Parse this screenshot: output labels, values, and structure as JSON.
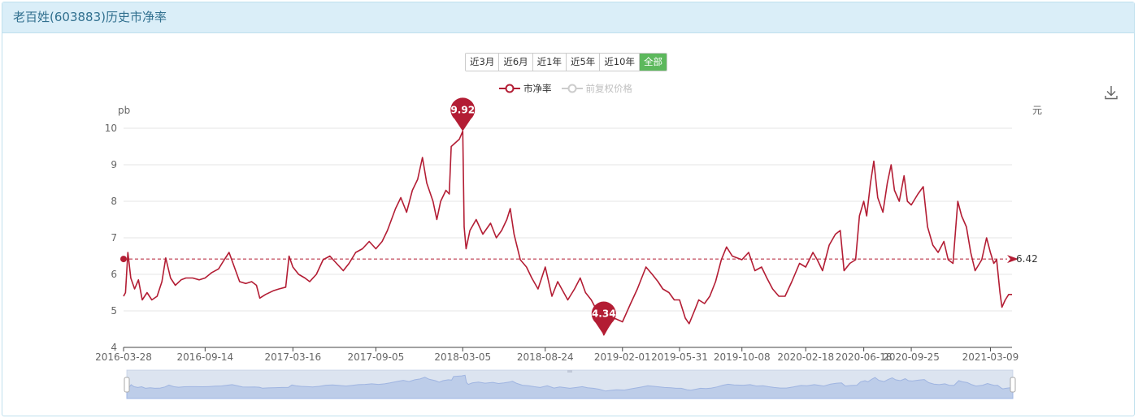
{
  "panel": {
    "title": "老百姓(603883)历史市净率"
  },
  "range_buttons": [
    {
      "label": "近3月",
      "active": false
    },
    {
      "label": "近6月",
      "active": false
    },
    {
      "label": "近1年",
      "active": false
    },
    {
      "label": "近5年",
      "active": false
    },
    {
      "label": "近10年",
      "active": false
    },
    {
      "label": "全部",
      "active": true
    }
  ],
  "legend": [
    {
      "label": "市净率",
      "color": "#b31d34",
      "enabled": true
    },
    {
      "label": "前复权价格",
      "color": "#cccccc",
      "enabled": false
    }
  ],
  "toolbar": {
    "download_icon": "download-icon"
  },
  "chart_data": {
    "type": "line",
    "y_axis_unit": "pb",
    "y2_axis_unit": "元",
    "ylim": [
      4,
      10
    ],
    "yticks": [
      4,
      5,
      6,
      7,
      8,
      9,
      10
    ],
    "x_range": [
      "2016-03-28",
      "2021-04-23"
    ],
    "xticks": [
      "2016-03-28",
      "2016-09-14",
      "2017-03-16",
      "2017-09-05",
      "2018-03-05",
      "2018-08-24",
      "2019-02-01",
      "2019-05-31",
      "2019-10-08",
      "2020-02-18",
      "2020-06-18",
      "2020-09-25",
      "2021-03-09"
    ],
    "grid": true,
    "series": [
      {
        "name": "市净率",
        "color": "#b31d34",
        "points": [
          [
            "2016-03-28",
            5.4
          ],
          [
            "2016-04-01",
            5.5
          ],
          [
            "2016-04-06",
            6.6
          ],
          [
            "2016-04-12",
            5.9
          ],
          [
            "2016-04-20",
            5.6
          ],
          [
            "2016-04-28",
            5.85
          ],
          [
            "2016-05-06",
            5.3
          ],
          [
            "2016-05-16",
            5.5
          ],
          [
            "2016-05-26",
            5.3
          ],
          [
            "2016-06-06",
            5.4
          ],
          [
            "2016-06-16",
            5.8
          ],
          [
            "2016-06-24",
            6.45
          ],
          [
            "2016-07-04",
            5.9
          ],
          [
            "2016-07-14",
            5.7
          ],
          [
            "2016-07-26",
            5.85
          ],
          [
            "2016-08-05",
            5.9
          ],
          [
            "2016-08-19",
            5.9
          ],
          [
            "2016-09-02",
            5.85
          ],
          [
            "2016-09-14",
            5.9
          ],
          [
            "2016-09-28",
            6.05
          ],
          [
            "2016-10-12",
            6.15
          ],
          [
            "2016-10-24",
            6.4
          ],
          [
            "2016-11-03",
            6.6
          ],
          [
            "2016-11-14",
            6.2
          ],
          [
            "2016-11-25",
            5.8
          ],
          [
            "2016-12-08",
            5.75
          ],
          [
            "2016-12-20",
            5.8
          ],
          [
            "2016-12-30",
            5.7
          ],
          [
            "2017-01-06",
            5.35
          ],
          [
            "2017-01-18",
            5.45
          ],
          [
            "2017-02-03",
            5.55
          ],
          [
            "2017-02-15",
            5.6
          ],
          [
            "2017-03-01",
            5.65
          ],
          [
            "2017-03-08",
            6.5
          ],
          [
            "2017-03-16",
            6.2
          ],
          [
            "2017-03-28",
            6.0
          ],
          [
            "2017-04-10",
            5.9
          ],
          [
            "2017-04-20",
            5.8
          ],
          [
            "2017-05-04",
            6.0
          ],
          [
            "2017-05-18",
            6.4
          ],
          [
            "2017-06-01",
            6.5
          ],
          [
            "2017-06-15",
            6.3
          ],
          [
            "2017-06-29",
            6.1
          ],
          [
            "2017-07-11",
            6.3
          ],
          [
            "2017-07-25",
            6.6
          ],
          [
            "2017-08-08",
            6.7
          ],
          [
            "2017-08-22",
            6.9
          ],
          [
            "2017-09-05",
            6.7
          ],
          [
            "2017-09-18",
            6.9
          ],
          [
            "2017-09-29",
            7.2
          ],
          [
            "2017-10-16",
            7.8
          ],
          [
            "2017-10-27",
            8.1
          ],
          [
            "2017-11-08",
            7.7
          ],
          [
            "2017-11-20",
            8.3
          ],
          [
            "2017-12-01",
            8.6
          ],
          [
            "2017-12-11",
            9.2
          ],
          [
            "2017-12-20",
            8.5
          ],
          [
            "2018-01-02",
            8.0
          ],
          [
            "2018-01-10",
            7.5
          ],
          [
            "2018-01-18",
            8.0
          ],
          [
            "2018-01-29",
            8.3
          ],
          [
            "2018-02-05",
            8.2
          ],
          [
            "2018-02-09",
            9.5
          ],
          [
            "2018-02-26",
            9.7
          ],
          [
            "2018-03-05",
            9.92
          ],
          [
            "2018-03-08",
            7.3
          ],
          [
            "2018-03-12",
            6.7
          ],
          [
            "2018-03-20",
            7.2
          ],
          [
            "2018-04-02",
            7.5
          ],
          [
            "2018-04-16",
            7.1
          ],
          [
            "2018-05-02",
            7.4
          ],
          [
            "2018-05-14",
            7.0
          ],
          [
            "2018-05-25",
            7.2
          ],
          [
            "2018-06-05",
            7.5
          ],
          [
            "2018-06-12",
            7.8
          ],
          [
            "2018-06-20",
            7.1
          ],
          [
            "2018-07-03",
            6.4
          ],
          [
            "2018-07-16",
            6.2
          ],
          [
            "2018-07-27",
            5.9
          ],
          [
            "2018-08-09",
            5.6
          ],
          [
            "2018-08-24",
            6.2
          ],
          [
            "2018-09-07",
            5.4
          ],
          [
            "2018-09-19",
            5.8
          ],
          [
            "2018-10-10",
            5.3
          ],
          [
            "2018-10-24",
            5.6
          ],
          [
            "2018-11-05",
            5.9
          ],
          [
            "2018-11-16",
            5.5
          ],
          [
            "2018-11-28",
            5.3
          ],
          [
            "2018-12-10",
            5.0
          ],
          [
            "2018-12-24",
            4.34
          ],
          [
            "2019-01-04",
            4.6
          ],
          [
            "2019-01-15",
            4.8
          ],
          [
            "2019-02-01",
            4.7
          ],
          [
            "2019-02-18",
            5.2
          ],
          [
            "2019-03-04",
            5.6
          ],
          [
            "2019-03-13",
            5.9
          ],
          [
            "2019-03-22",
            6.2
          ],
          [
            "2019-04-04",
            6.0
          ],
          [
            "2019-04-16",
            5.8
          ],
          [
            "2019-04-26",
            5.6
          ],
          [
            "2019-05-09",
            5.5
          ],
          [
            "2019-05-20",
            5.3
          ],
          [
            "2019-05-31",
            5.3
          ],
          [
            "2019-06-12",
            4.8
          ],
          [
            "2019-06-20",
            4.65
          ],
          [
            "2019-07-01",
            5.0
          ],
          [
            "2019-07-10",
            5.3
          ],
          [
            "2019-07-22",
            5.2
          ],
          [
            "2019-08-02",
            5.4
          ],
          [
            "2019-08-14",
            5.8
          ],
          [
            "2019-08-26",
            6.4
          ],
          [
            "2019-09-06",
            6.75
          ],
          [
            "2019-09-18",
            6.5
          ],
          [
            "2019-10-08",
            6.4
          ],
          [
            "2019-10-22",
            6.6
          ],
          [
            "2019-11-04",
            6.1
          ],
          [
            "2019-11-18",
            6.2
          ],
          [
            "2019-11-29",
            5.9
          ],
          [
            "2019-12-11",
            5.6
          ],
          [
            "2019-12-24",
            5.4
          ],
          [
            "2020-01-06",
            5.4
          ],
          [
            "2020-01-20",
            5.8
          ],
          [
            "2020-02-05",
            6.3
          ],
          [
            "2020-02-18",
            6.2
          ],
          [
            "2020-03-04",
            6.6
          ],
          [
            "2020-03-13",
            6.4
          ],
          [
            "2020-03-24",
            6.1
          ],
          [
            "2020-04-07",
            6.8
          ],
          [
            "2020-04-20",
            7.1
          ],
          [
            "2020-04-30",
            7.2
          ],
          [
            "2020-05-08",
            6.1
          ],
          [
            "2020-05-20",
            6.3
          ],
          [
            "2020-06-01",
            6.4
          ],
          [
            "2020-06-09",
            7.6
          ],
          [
            "2020-06-18",
            8.0
          ],
          [
            "2020-06-24",
            7.6
          ],
          [
            "2020-07-02",
            8.5
          ],
          [
            "2020-07-09",
            9.1
          ],
          [
            "2020-07-17",
            8.1
          ],
          [
            "2020-07-28",
            7.7
          ],
          [
            "2020-08-06",
            8.5
          ],
          [
            "2020-08-14",
            9.0
          ],
          [
            "2020-08-21",
            8.3
          ],
          [
            "2020-08-31",
            8.0
          ],
          [
            "2020-09-10",
            8.7
          ],
          [
            "2020-09-17",
            8.0
          ],
          [
            "2020-09-25",
            7.9
          ],
          [
            "2020-10-09",
            8.2
          ],
          [
            "2020-10-20",
            8.4
          ],
          [
            "2020-10-29",
            7.3
          ],
          [
            "2020-11-09",
            6.8
          ],
          [
            "2020-11-20",
            6.6
          ],
          [
            "2020-12-02",
            6.9
          ],
          [
            "2020-12-11",
            6.4
          ],
          [
            "2020-12-21",
            6.3
          ],
          [
            "2020-12-31",
            8.0
          ],
          [
            "2021-01-08",
            7.6
          ],
          [
            "2021-01-18",
            7.3
          ],
          [
            "2021-01-27",
            6.6
          ],
          [
            "2021-02-05",
            6.1
          ],
          [
            "2021-02-19",
            6.4
          ],
          [
            "2021-03-01",
            7.0
          ],
          [
            "2021-03-09",
            6.6
          ],
          [
            "2021-03-16",
            6.3
          ],
          [
            "2021-03-22",
            6.4
          ],
          [
            "2021-03-29",
            5.5
          ],
          [
            "2021-04-02",
            5.1
          ],
          [
            "2021-04-09",
            5.3
          ],
          [
            "2021-04-16",
            5.45
          ],
          [
            "2021-04-23",
            5.45
          ]
        ]
      }
    ],
    "markers": [
      {
        "label": "9.92",
        "kind": "max",
        "date": "2018-03-05",
        "value": 9.92
      },
      {
        "label": "4.34",
        "kind": "min",
        "date": "2018-12-24",
        "value": 4.34
      }
    ],
    "average_line": {
      "value": 6.42,
      "label": "6.42"
    }
  }
}
